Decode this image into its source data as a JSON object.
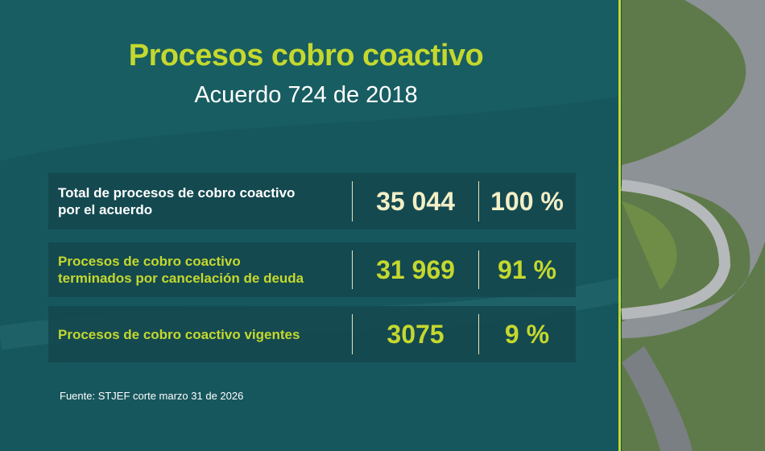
{
  "header": {
    "title": "Procesos cobro coactivo",
    "subtitle": "Acuerdo 724 de 2018"
  },
  "table": {
    "rows": [
      {
        "label_lines": [
          "Total de procesos de cobro coactivo",
          "por el acuerdo"
        ],
        "count": "35 044",
        "percent": "100 %"
      },
      {
        "label_lines": [
          "Procesos de cobro coactivo",
          "terminados por cancelación de deuda"
        ],
        "count": "31 969",
        "percent": "91 %"
      },
      {
        "label_lines": [
          "Procesos de cobro coactivo vigentes"
        ],
        "count": "3075",
        "percent": "9 %"
      }
    ]
  },
  "footer": {
    "source": "Fuente: STJEF corte marzo 31 de 2026"
  }
}
